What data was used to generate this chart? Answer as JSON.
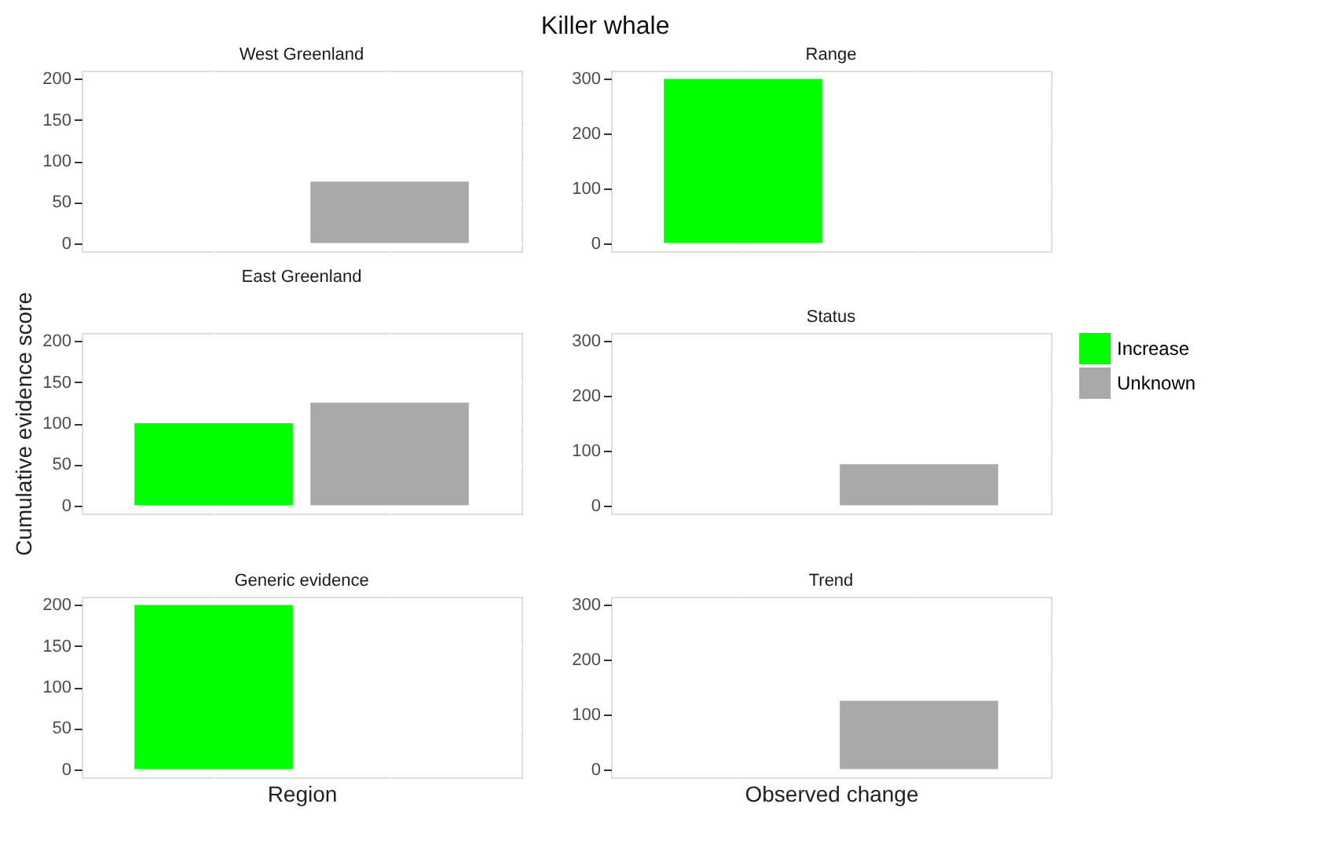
{
  "chart_data": [
    {
      "type": "bar",
      "title": "West Greenland",
      "annotations": [
        "Killer whale"
      ],
      "categories": [
        null,
        null
      ],
      "series": [
        {
          "color": "#00ff00",
          "values": [
            null,
            null
          ]
        },
        {
          "color": "#a9a9a9",
          "values": [
            null,
            75
          ]
        }
      ],
      "ylim": [
        -10,
        210
      ],
      "yticks": [
        0,
        50,
        100,
        150,
        200
      ],
      "grid": true,
      "tick_labels": "y"
    },
    {
      "type": "bar",
      "title": "Range",
      "categories": [
        null,
        null
      ],
      "series": [
        {
          "color": "#00ff00",
          "values": [
            300,
            null
          ]
        },
        {
          "color": "#a9a9a9",
          "values": [
            null,
            null
          ]
        }
      ],
      "ylim": [
        -15,
        315
      ],
      "yticks": [
        0,
        100,
        200,
        300
      ],
      "grid": true,
      "tick_labels": "y"
    },
    {
      "type": "bar",
      "title": "East Greenland",
      "ylabel": "Cumulative evidence score",
      "categories": [
        null,
        null
      ],
      "series": [
        {
          "color": "#00ff00",
          "values": [
            100,
            null
          ]
        },
        {
          "color": "#a9a9a9",
          "values": [
            null,
            125
          ]
        }
      ],
      "ylim": [
        -10,
        210
      ],
      "yticks": [
        0,
        50,
        100,
        150,
        200
      ],
      "grid": true,
      "tick_labels": "y"
    },
    {
      "type": "bar",
      "title": "Status",
      "categories": [
        null,
        null
      ],
      "series": [
        {
          "name": "Increase",
          "color": "#00ff00",
          "values": [
            null,
            null
          ]
        },
        {
          "name": "Unknown",
          "color": "#a9a9a9",
          "values": [
            null,
            75
          ]
        }
      ],
      "ylim": [
        -15,
        315
      ],
      "yticks": [
        0,
        100,
        200,
        300
      ],
      "grid": true,
      "legend": "right",
      "tick_labels": "y"
    },
    {
      "type": "bar",
      "title": "Generic evidence",
      "xlabel": "Region",
      "categories": [
        null,
        null
      ],
      "series": [
        {
          "color": "#00ff00",
          "values": [
            200,
            null
          ]
        },
        {
          "color": "#a9a9a9",
          "values": [
            null,
            null
          ]
        }
      ],
      "ylim": [
        -10,
        210
      ],
      "yticks": [
        0,
        50,
        100,
        150,
        200
      ],
      "grid": true,
      "tick_labels": "y"
    },
    {
      "type": "bar",
      "title": "Trend",
      "xlabel": "Observed change",
      "categories": [
        null,
        null
      ],
      "series": [
        {
          "color": "#00ff00",
          "values": [
            null,
            null
          ]
        },
        {
          "color": "#a9a9a9",
          "values": [
            null,
            125
          ]
        }
      ],
      "ylim": [
        -15,
        315
      ],
      "yticks": [
        0,
        100,
        200,
        300
      ],
      "grid": true,
      "tick_labels": "y"
    }
  ]
}
